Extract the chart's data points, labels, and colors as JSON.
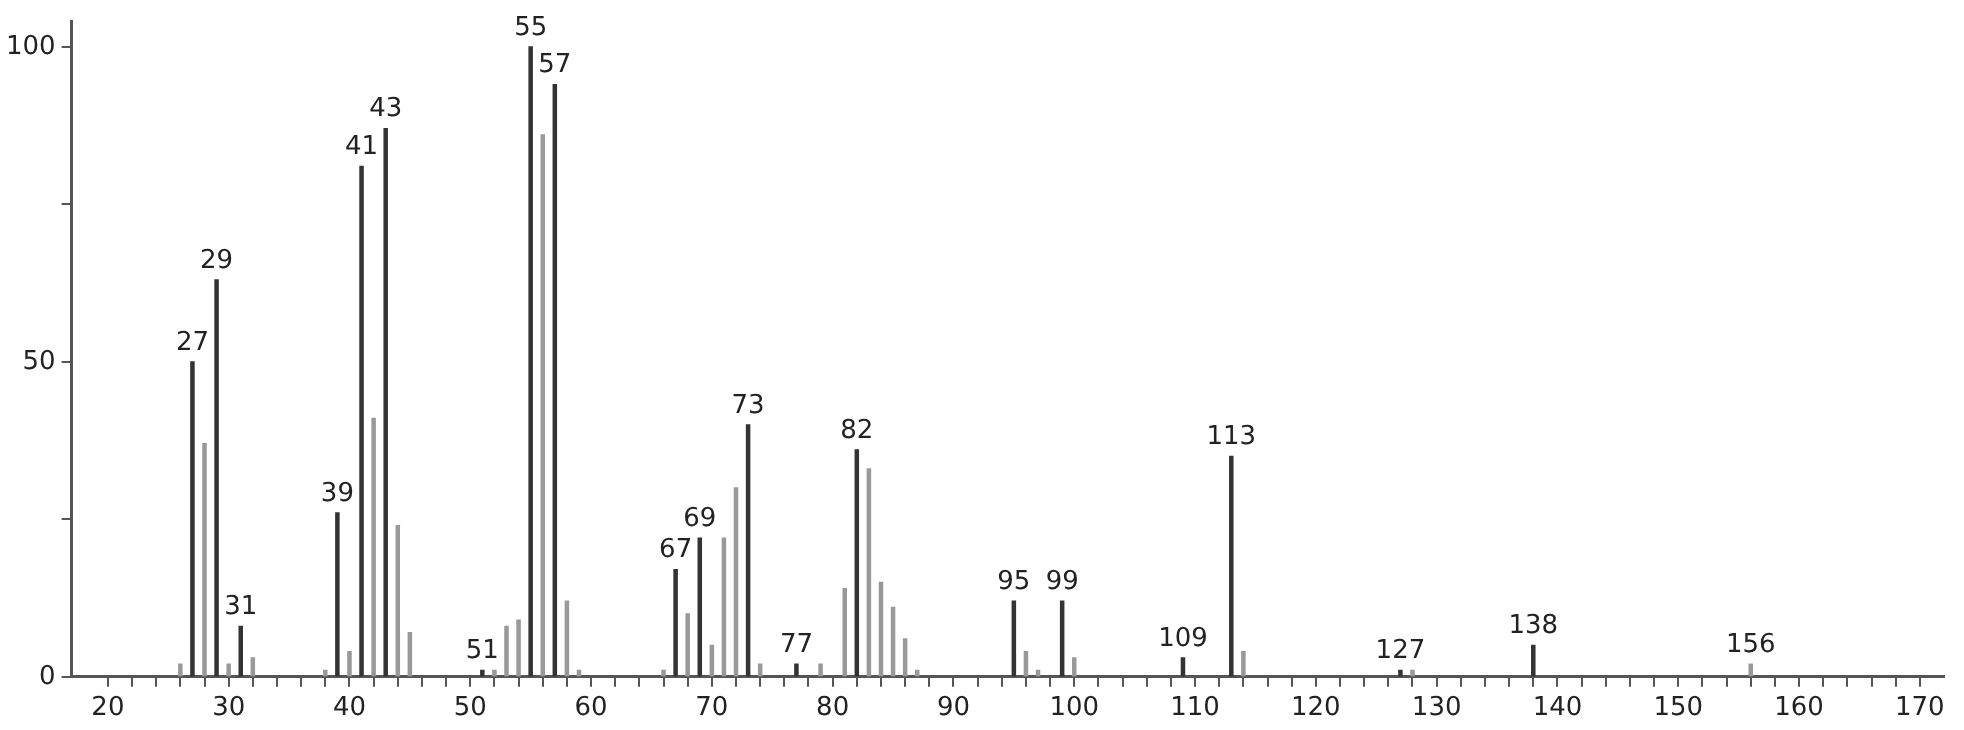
{
  "chart_data": {
    "type": "bar",
    "x": [
      26,
      27,
      28,
      29,
      30,
      31,
      32,
      38,
      39,
      40,
      41,
      42,
      43,
      44,
      45,
      51,
      52,
      53,
      54,
      55,
      56,
      57,
      58,
      59,
      66,
      67,
      68,
      69,
      70,
      71,
      72,
      73,
      74,
      77,
      79,
      81,
      82,
      83,
      84,
      85,
      86,
      87,
      95,
      96,
      97,
      99,
      100,
      109,
      113,
      114,
      127,
      128,
      138,
      156
    ],
    "values": [
      2,
      50,
      37,
      63,
      2,
      8,
      3,
      1,
      26,
      4,
      81,
      41,
      87,
      24,
      7,
      1,
      1,
      8,
      9,
      100,
      86,
      94,
      12,
      1,
      1,
      17,
      10,
      22,
      5,
      22,
      30,
      40,
      2,
      2,
      2,
      14,
      36,
      33,
      15,
      11,
      6,
      1,
      12,
      4,
      1,
      12,
      3,
      3,
      35,
      4,
      1,
      1,
      5,
      2
    ],
    "colors": [
      "#999999",
      "#333333",
      "#999999",
      "#333333",
      "#999999",
      "#333333",
      "#999999",
      "#999999",
      "#333333",
      "#999999",
      "#333333",
      "#999999",
      "#333333",
      "#999999",
      "#999999",
      "#333333",
      "#999999",
      "#999999",
      "#999999",
      "#333333",
      "#999999",
      "#333333",
      "#999999",
      "#999999",
      "#999999",
      "#333333",
      "#999999",
      "#333333",
      "#999999",
      "#999999",
      "#999999",
      "#333333",
      "#999999",
      "#333333",
      "#999999",
      "#999999",
      "#333333",
      "#999999",
      "#999999",
      "#999999",
      "#999999",
      "#999999",
      "#333333",
      "#999999",
      "#999999",
      "#333333",
      "#999999",
      "#333333",
      "#333333",
      "#999999",
      "#333333",
      "#999999",
      "#333333",
      "#999999"
    ],
    "xlim": [
      17,
      172
    ],
    "xticks": [
      20,
      {
        "value": 22,
        "label": null
      },
      {
        "value": 24,
        "label": null
      },
      {
        "value": 26,
        "label": null
      },
      {
        "value": 28,
        "label": null
      },
      30,
      {
        "value": 32,
        "label": null
      },
      {
        "value": 34,
        "label": null
      },
      {
        "value": 36,
        "label": null
      },
      {
        "value": 38,
        "label": null
      },
      40,
      {
        "value": 42,
        "label": null
      },
      {
        "value": 44,
        "label": null
      },
      {
        "value": 46,
        "label": null
      },
      {
        "value": 48,
        "label": null
      },
      50,
      {
        "value": 52,
        "label": null
      },
      {
        "value": 54,
        "label": null
      },
      {
        "value": 56,
        "label": null
      },
      {
        "value": 58,
        "label": null
      },
      60,
      {
        "value": 62,
        "label": null
      },
      {
        "value": 64,
        "label": null
      },
      {
        "value": 66,
        "label": null
      },
      {
        "value": 68,
        "label": null
      },
      70,
      {
        "value": 72,
        "label": null
      },
      {
        "value": 74,
        "label": null
      },
      {
        "value": 76,
        "label": null
      },
      {
        "value": 78,
        "label": null
      },
      80,
      {
        "value": 82,
        "label": null
      },
      {
        "value": 84,
        "label": null
      },
      {
        "value": 86,
        "label": null
      },
      {
        "value": 88,
        "label": null
      },
      90,
      {
        "value": 92,
        "label": null
      },
      {
        "value": 94,
        "label": null
      },
      {
        "value": 96,
        "label": null
      },
      {
        "value": 98,
        "label": null
      },
      100,
      {
        "value": 102,
        "label": null
      },
      {
        "value": 104,
        "label": null
      },
      {
        "value": 106,
        "label": null
      },
      {
        "value": 108,
        "label": null
      },
      110,
      {
        "value": 112,
        "label": null
      },
      {
        "value": 114,
        "label": null
      },
      {
        "value": 116,
        "label": null
      },
      {
        "value": 118,
        "label": null
      },
      120,
      {
        "value": 122,
        "label": null
      },
      {
        "value": 124,
        "label": null
      },
      {
        "value": 126,
        "label": null
      },
      {
        "value": 128,
        "label": null
      },
      130,
      {
        "value": 132,
        "label": null
      },
      {
        "value": 134,
        "label": null
      },
      {
        "value": 136,
        "label": null
      },
      {
        "value": 138,
        "label": null
      },
      140,
      {
        "value": 142,
        "label": null
      },
      {
        "value": 144,
        "label": null
      },
      {
        "value": 146,
        "label": null
      },
      {
        "value": 148,
        "label": null
      },
      150,
      {
        "value": 152,
        "label": null
      },
      {
        "value": 154,
        "label": null
      },
      {
        "value": 156,
        "label": null
      },
      {
        "value": 158,
        "label": null
      },
      160,
      {
        "value": 162,
        "label": null
      },
      {
        "value": 164,
        "label": null
      },
      {
        "value": 166,
        "label": null
      },
      {
        "value": 168,
        "label": null
      },
      170
    ],
    "ylim": [
      0,
      104
    ],
    "yticks": [
      0,
      {
        "value": 25,
        "label": null
      },
      50,
      {
        "value": 75,
        "label": null
      },
      100
    ],
    "grid": false,
    "legend": false,
    "annotations": [
      {
        "text": "27",
        "x": 27,
        "y": 50
      },
      {
        "text": "29",
        "x": 29,
        "y": 63
      },
      {
        "text": "31",
        "x": 31,
        "y": 8
      },
      {
        "text": "39",
        "x": 39,
        "y": 26
      },
      {
        "text": "41",
        "x": 41,
        "y": 81
      },
      {
        "text": "43",
        "x": 43,
        "y": 87
      },
      {
        "text": "51",
        "x": 51,
        "y": 1
      },
      {
        "text": "55",
        "x": 55,
        "y": 100
      },
      {
        "text": "57",
        "x": 57,
        "y": 94
      },
      {
        "text": "67",
        "x": 67,
        "y": 17
      },
      {
        "text": "69",
        "x": 69,
        "y": 22
      },
      {
        "text": "73",
        "x": 73,
        "y": 40
      },
      {
        "text": "77",
        "x": 77,
        "y": 2
      },
      {
        "text": "82",
        "x": 82,
        "y": 36
      },
      {
        "text": "95",
        "x": 95,
        "y": 12
      },
      {
        "text": "99",
        "x": 99,
        "y": 12
      },
      {
        "text": "109",
        "x": 109,
        "y": 3
      },
      {
        "text": "113",
        "x": 113,
        "y": 35
      },
      {
        "text": "127",
        "x": 127,
        "y": 1
      },
      {
        "text": "138",
        "x": 138,
        "y": 5
      },
      {
        "text": "156",
        "x": 156,
        "y": 2
      }
    ]
  }
}
